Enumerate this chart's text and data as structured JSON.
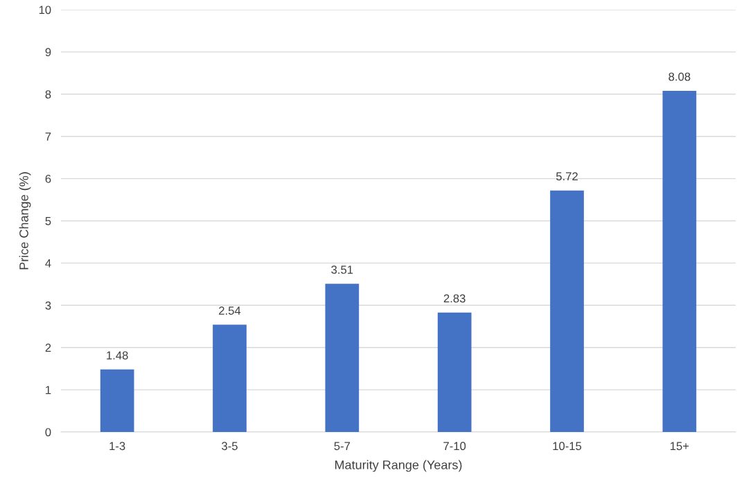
{
  "chart_data": {
    "type": "bar",
    "xlabel": "Maturity Range (Years)",
    "ylabel": "Price Change (%)",
    "categories": [
      "1-3",
      "3-5",
      "5-7",
      "7-10",
      "10-15",
      "15+"
    ],
    "values": [
      1.48,
      2.54,
      3.51,
      2.83,
      5.72,
      8.08
    ],
    "color": "#4472c4",
    "ylim": [
      0,
      10
    ],
    "yticks": [
      0,
      1,
      2,
      3,
      4,
      5,
      6,
      7,
      8,
      9,
      10
    ],
    "grid": "y",
    "data_labels": true,
    "legend": false
  }
}
